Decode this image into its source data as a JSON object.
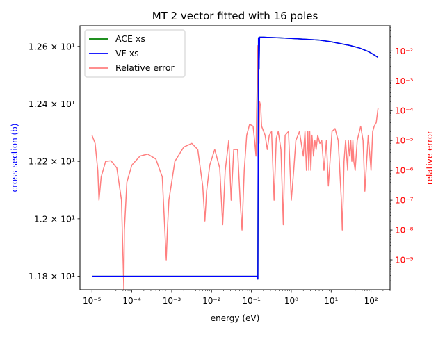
{
  "chart_data": {
    "type": "line",
    "title": "MT 2 vector fitted with 16 poles",
    "xlabel": "energy (eV)",
    "ylabel_left": "cross section (b)",
    "ylabel_right": "relative error",
    "x_scale": "log",
    "y_left_scale": "linear",
    "y_right_scale": "log",
    "xlim": [
      5e-06,
      300
    ],
    "ylim_left": [
      11.753,
      12.672
    ],
    "ylim_right": [
      1e-10,
      0.07
    ],
    "x_ticks": [
      1e-05,
      0.0001,
      0.001,
      0.01,
      0.1,
      1,
      10,
      100
    ],
    "x_tick_labels": [
      "10⁻⁵",
      "10⁻⁴",
      "10⁻³",
      "10⁻²",
      "10⁻¹",
      "10⁰",
      "10¹",
      "10²"
    ],
    "y_left_ticks": [
      11.8,
      12.0,
      12.2,
      12.4,
      12.6
    ],
    "y_left_tick_labels": [
      "1.18 × 10¹",
      "1.2 × 10¹",
      "1.22 × 10¹",
      "1.24 × 10¹",
      "1.26 × 10¹"
    ],
    "y_right_ticks": [
      1e-09,
      1e-08,
      1e-07,
      1e-06,
      1e-05,
      0.0001,
      0.001,
      0.01
    ],
    "y_right_tick_labels": [
      "10⁻⁹",
      "10⁻⁸",
      "10⁻⁷",
      "10⁻⁶",
      "10⁻⁵",
      "10⁻⁴",
      "10⁻³",
      "10⁻²"
    ],
    "legend_position": "top-left",
    "colors": {
      "ace": "#008000",
      "vf": "#0000ff",
      "err": "#ff7f7f",
      "left_axis": "#0000ff",
      "right_axis": "#ff0000"
    },
    "series": [
      {
        "name": "ACE xs",
        "axis": "left",
        "x": [
          1e-05,
          0.01,
          0.1,
          0.13,
          0.14,
          0.145,
          0.15,
          0.155,
          0.16,
          0.2,
          0.5,
          1,
          5,
          10,
          30,
          50,
          80,
          100,
          150
        ],
        "y": [
          11.8,
          11.8,
          11.8,
          11.8,
          11.8,
          11.79,
          12.63,
          12.52,
          12.632,
          12.632,
          12.63,
          12.628,
          12.622,
          12.616,
          12.603,
          12.595,
          12.584,
          12.577,
          12.562
        ]
      },
      {
        "name": "VF xs",
        "axis": "left",
        "x": [
          1e-05,
          0.01,
          0.1,
          0.13,
          0.14,
          0.145,
          0.15,
          0.155,
          0.16,
          0.2,
          0.5,
          1,
          5,
          10,
          30,
          50,
          80,
          100,
          150
        ],
        "y": [
          11.8,
          11.8,
          11.8,
          11.8,
          11.8,
          11.79,
          12.63,
          12.52,
          12.632,
          12.632,
          12.63,
          12.628,
          12.622,
          12.616,
          12.603,
          12.595,
          12.584,
          12.577,
          12.562
        ]
      },
      {
        "name": "Relative error",
        "axis": "right",
        "x": [
          1e-05,
          1.2e-05,
          1.4e-05,
          1.5e-05,
          1.7e-05,
          2.2e-05,
          3e-05,
          4.2e-05,
          5.5e-05,
          6.3e-05,
          6.5e-05,
          7.5e-05,
          0.0001,
          0.00016,
          0.00025,
          0.0004,
          0.00058,
          0.00073,
          0.00078,
          0.00085,
          0.0012,
          0.002,
          0.0032,
          0.0045,
          0.006,
          0.0068,
          0.0075,
          0.009,
          0.012,
          0.016,
          0.019,
          0.022,
          0.027,
          0.031,
          0.036,
          0.045,
          0.052,
          0.058,
          0.066,
          0.076,
          0.09,
          0.11,
          0.12,
          0.13,
          0.135,
          0.14,
          0.145,
          0.15,
          0.155,
          0.16,
          0.17,
          0.18,
          0.22,
          0.25,
          0.28,
          0.32,
          0.37,
          0.42,
          0.47,
          0.55,
          0.63,
          0.7,
          0.85,
          1.0,
          1.15,
          1.3,
          1.6,
          2.0,
          2.2,
          2.4,
          2.6,
          2.75,
          2.9,
          3.1,
          3.3,
          3.6,
          3.9,
          4.2,
          4.6,
          5.2,
          5.8,
          6.6,
          7.6,
          8.5,
          10.5,
          12.5,
          15,
          18,
          19,
          20,
          21,
          23,
          25,
          26,
          27,
          29,
          31,
          33,
          35,
          37,
          40,
          45,
          55,
          63,
          66,
          70,
          85,
          100,
          110,
          120,
          135,
          150
        ],
        "y": [
          1.5e-05,
          8e-06,
          1e-06,
          1e-07,
          6e-07,
          2e-06,
          2.1e-06,
          1.2e-06,
          1e-07,
          1e-10,
          1e-08,
          4e-07,
          1.5e-06,
          3e-06,
          3.5e-06,
          2.4e-06,
          6e-07,
          1e-09,
          1e-08,
          1e-07,
          2e-06,
          6e-06,
          8e-06,
          5e-06,
          3e-07,
          2e-08,
          2e-07,
          1.5e-06,
          5e-06,
          1.2e-06,
          1.5e-08,
          1e-06,
          1e-05,
          1e-07,
          5e-06,
          5e-06,
          1e-07,
          1e-08,
          1e-06,
          1.5e-05,
          3.5e-05,
          3e-05,
          1e-05,
          3e-06,
          0.0001,
          0.0008,
          0.015,
          0.0003,
          8e-06,
          0.0002,
          0.00015,
          3e-05,
          1.5e-05,
          5e-06,
          1.5e-05,
          2e-05,
          1e-07,
          1.2e-05,
          2e-05,
          5e-06,
          1.5e-08,
          1.5e-05,
          2e-05,
          1e-07,
          1e-06,
          1e-05,
          2e-05,
          3e-06,
          2e-05,
          1e-06,
          2e-05,
          1e-06,
          2e-05,
          1e-06,
          1.5e-05,
          3e-06,
          1e-05,
          5e-06,
          1.5e-05,
          8e-06,
          1e-05,
          1e-06,
          1e-05,
          3e-07,
          2e-05,
          2.5e-05,
          1e-05,
          1e-07,
          1e-08,
          1e-07,
          2e-06,
          1e-05,
          2e-06,
          1e-06,
          1e-05,
          3e-06,
          1e-05,
          2e-06,
          1e-05,
          2e-06,
          1e-06,
          1e-05,
          3e-05,
          1e-05,
          2e-06,
          2e-07,
          1.5e-05,
          1e-06,
          2e-05,
          3e-05,
          4e-05,
          0.00012
        ]
      }
    ]
  }
}
